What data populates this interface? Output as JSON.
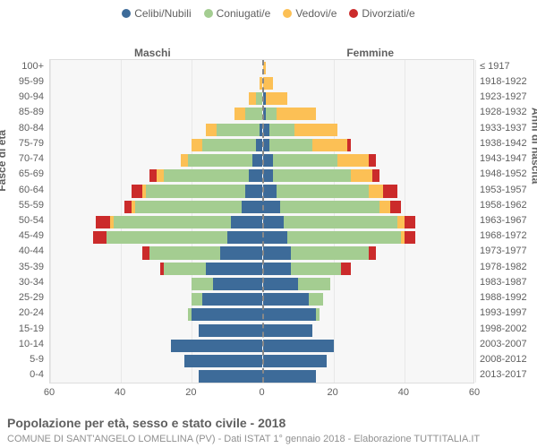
{
  "legend": {
    "items": [
      {
        "label": "Celibi/Nubili",
        "color": "#3d6b99"
      },
      {
        "label": "Coniugati/e",
        "color": "#a4cd91"
      },
      {
        "label": "Vedovi/e",
        "color": "#fcc055"
      },
      {
        "label": "Divorziati/e",
        "color": "#cb2b2b"
      }
    ]
  },
  "labels": {
    "left_side": "Maschi",
    "right_side": "Femmine",
    "y_axis_left": "Fasce di età",
    "y_axis_right": "Anni di nascita"
  },
  "chart": {
    "type": "population-pyramid",
    "x_max": 60,
    "x_ticks": [
      60,
      40,
      20,
      0,
      20,
      40,
      60
    ],
    "x_tick_labels": [
      "60",
      "40",
      "20",
      "0",
      "20",
      "40",
      "60"
    ],
    "background_color": "#f7f7f7",
    "grid_color": "#e8e8e8",
    "border_color": "#dddddd",
    "center_line_color": "#888888",
    "label_color": "#606060",
    "colors": {
      "single": "#3d6b99",
      "married": "#a4cd91",
      "widowed": "#fcc055",
      "divorced": "#cb2b2b"
    },
    "rows": [
      {
        "age": "100+",
        "birth": "≤ 1917",
        "m": {
          "s": 0,
          "c": 0,
          "w": 0,
          "d": 0
        },
        "f": {
          "s": 0,
          "c": 0,
          "w": 1,
          "d": 0
        }
      },
      {
        "age": "95-99",
        "birth": "1918-1922",
        "m": {
          "s": 0,
          "c": 0,
          "w": 1,
          "d": 0
        },
        "f": {
          "s": 0,
          "c": 0,
          "w": 3,
          "d": 0
        }
      },
      {
        "age": "90-94",
        "birth": "1923-1927",
        "m": {
          "s": 0,
          "c": 2,
          "w": 2,
          "d": 0
        },
        "f": {
          "s": 1,
          "c": 0,
          "w": 6,
          "d": 0
        }
      },
      {
        "age": "85-89",
        "birth": "1928-1932",
        "m": {
          "s": 0,
          "c": 5,
          "w": 3,
          "d": 0
        },
        "f": {
          "s": 1,
          "c": 3,
          "w": 11,
          "d": 0
        }
      },
      {
        "age": "80-84",
        "birth": "1933-1937",
        "m": {
          "s": 1,
          "c": 12,
          "w": 3,
          "d": 0
        },
        "f": {
          "s": 2,
          "c": 7,
          "w": 12,
          "d": 0
        }
      },
      {
        "age": "75-79",
        "birth": "1938-1942",
        "m": {
          "s": 2,
          "c": 15,
          "w": 3,
          "d": 0
        },
        "f": {
          "s": 2,
          "c": 12,
          "w": 10,
          "d": 1
        }
      },
      {
        "age": "70-74",
        "birth": "1943-1947",
        "m": {
          "s": 3,
          "c": 18,
          "w": 2,
          "d": 0
        },
        "f": {
          "s": 3,
          "c": 18,
          "w": 9,
          "d": 2
        }
      },
      {
        "age": "65-69",
        "birth": "1948-1952",
        "m": {
          "s": 4,
          "c": 24,
          "w": 2,
          "d": 2
        },
        "f": {
          "s": 3,
          "c": 22,
          "w": 6,
          "d": 2
        }
      },
      {
        "age": "60-64",
        "birth": "1953-1957",
        "m": {
          "s": 5,
          "c": 28,
          "w": 1,
          "d": 3
        },
        "f": {
          "s": 4,
          "c": 26,
          "w": 4,
          "d": 4
        }
      },
      {
        "age": "55-59",
        "birth": "1958-1962",
        "m": {
          "s": 6,
          "c": 30,
          "w": 1,
          "d": 2
        },
        "f": {
          "s": 5,
          "c": 28,
          "w": 3,
          "d": 3
        }
      },
      {
        "age": "50-54",
        "birth": "1963-1967",
        "m": {
          "s": 9,
          "c": 33,
          "w": 1,
          "d": 4
        },
        "f": {
          "s": 6,
          "c": 32,
          "w": 2,
          "d": 3
        }
      },
      {
        "age": "45-49",
        "birth": "1968-1972",
        "m": {
          "s": 10,
          "c": 34,
          "w": 0,
          "d": 4
        },
        "f": {
          "s": 7,
          "c": 32,
          "w": 1,
          "d": 3
        }
      },
      {
        "age": "40-44",
        "birth": "1973-1977",
        "m": {
          "s": 12,
          "c": 20,
          "w": 0,
          "d": 2
        },
        "f": {
          "s": 8,
          "c": 22,
          "w": 0,
          "d": 2
        }
      },
      {
        "age": "35-39",
        "birth": "1978-1982",
        "m": {
          "s": 16,
          "c": 12,
          "w": 0,
          "d": 1
        },
        "f": {
          "s": 8,
          "c": 14,
          "w": 0,
          "d": 3
        }
      },
      {
        "age": "30-34",
        "birth": "1983-1987",
        "m": {
          "s": 14,
          "c": 6,
          "w": 0,
          "d": 0
        },
        "f": {
          "s": 10,
          "c": 9,
          "w": 0,
          "d": 0
        }
      },
      {
        "age": "25-29",
        "birth": "1988-1992",
        "m": {
          "s": 17,
          "c": 3,
          "w": 0,
          "d": 0
        },
        "f": {
          "s": 13,
          "c": 4,
          "w": 0,
          "d": 0
        }
      },
      {
        "age": "20-24",
        "birth": "1993-1997",
        "m": {
          "s": 20,
          "c": 1,
          "w": 0,
          "d": 0
        },
        "f": {
          "s": 15,
          "c": 1,
          "w": 0,
          "d": 0
        }
      },
      {
        "age": "15-19",
        "birth": "1998-2002",
        "m": {
          "s": 18,
          "c": 0,
          "w": 0,
          "d": 0
        },
        "f": {
          "s": 14,
          "c": 0,
          "w": 0,
          "d": 0
        }
      },
      {
        "age": "10-14",
        "birth": "2003-2007",
        "m": {
          "s": 26,
          "c": 0,
          "w": 0,
          "d": 0
        },
        "f": {
          "s": 20,
          "c": 0,
          "w": 0,
          "d": 0
        }
      },
      {
        "age": "5-9",
        "birth": "2008-2012",
        "m": {
          "s": 22,
          "c": 0,
          "w": 0,
          "d": 0
        },
        "f": {
          "s": 18,
          "c": 0,
          "w": 0,
          "d": 0
        }
      },
      {
        "age": "0-4",
        "birth": "2013-2017",
        "m": {
          "s": 18,
          "c": 0,
          "w": 0,
          "d": 0
        },
        "f": {
          "s": 15,
          "c": 0,
          "w": 0,
          "d": 0
        }
      }
    ]
  },
  "footer": {
    "title": "Popolazione per età, sesso e stato civile - 2018",
    "subtitle": "COMUNE DI SANT'ANGELO LOMELLINA (PV) - Dati ISTAT 1° gennaio 2018 - Elaborazione TUTTITALIA.IT"
  }
}
